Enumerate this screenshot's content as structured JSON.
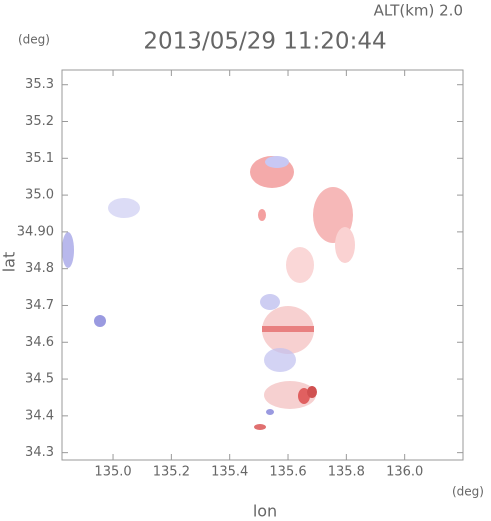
{
  "chart_data": {
    "type": "field",
    "title": "2013/05/29 11:20:44",
    "subtitle": "ALT(km) 2.0",
    "x_label": "lon",
    "y_label": "lat",
    "x_unit": "(deg)",
    "y_unit": "(deg)",
    "xlim": [
      134.825,
      136.2
    ],
    "ylim": [
      34.28,
      35.34
    ],
    "xticks": [
      {
        "value": 135.0,
        "label": "135.0"
      },
      135.2,
      135.4,
      135.6,
      135.8,
      {
        "value": 136.0,
        "label": "136.0"
      }
    ],
    "yticks": [
      34.3,
      34.4,
      34.5,
      34.6,
      34.7,
      34.8,
      {
        "value": 34.9,
        "label": "34.90"
      },
      {
        "value": 35.0,
        "label": "35.0"
      },
      35.1,
      35.2,
      35.3
    ],
    "frame_color": "#999999"
  }
}
